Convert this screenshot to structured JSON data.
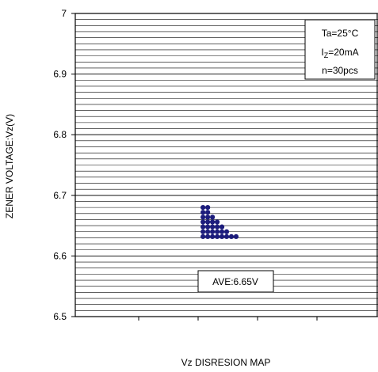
{
  "chart_data": {
    "type": "scatter",
    "title": "Vz DISRESION MAP",
    "y_label": "ZENER VOLTAGE:Vz(V)",
    "x": [
      27,
      28,
      27,
      28,
      27,
      28,
      29,
      27,
      28,
      29,
      30,
      27,
      28,
      29,
      30,
      31,
      27,
      28,
      29,
      30,
      31,
      32,
      27,
      28,
      29,
      30,
      31,
      32,
      33,
      34
    ],
    "y": [
      6.68,
      6.68,
      6.672,
      6.672,
      6.664,
      6.664,
      6.664,
      6.656,
      6.656,
      6.656,
      6.656,
      6.648,
      6.648,
      6.648,
      6.648,
      6.648,
      6.64,
      6.64,
      6.64,
      6.64,
      6.64,
      6.64,
      6.632,
      6.632,
      6.632,
      6.632,
      6.632,
      6.632,
      6.632,
      6.632
    ],
    "color": "#1c1c7c",
    "xlim": [
      0,
      64
    ],
    "ylim": [
      6.5,
      7
    ],
    "yticks": [
      6.5,
      6.6,
      6.7,
      6.8,
      6.9,
      7
    ],
    "grid": true,
    "grid_step": 0.01,
    "annotations": {
      "conditions": [
        "Ta=25°C",
        [
          "I",
          "Z",
          "=20mA"
        ],
        "n=30pcs"
      ],
      "average": "AVE:6.65V"
    }
  }
}
